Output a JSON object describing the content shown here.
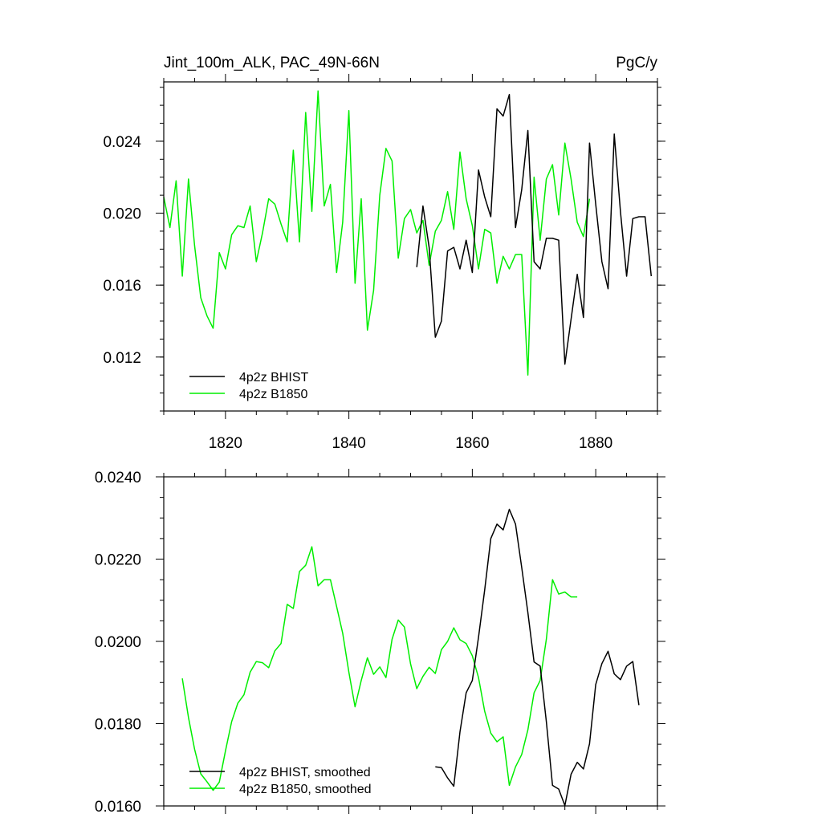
{
  "colors": {
    "bhist": "#000000",
    "b1850": "#00ee00"
  },
  "chart_data": [
    {
      "type": "line",
      "title": "Jint_100m_ALK, PAC_49N-66N",
      "units": "PgC/y",
      "xlim": [
        1810,
        1890
      ],
      "ylim": [
        0.009,
        0.0273
      ],
      "xticks": [
        1820,
        1840,
        1860,
        1880
      ],
      "xtick_labels": [
        "1820",
        "1840",
        "1860",
        "1880"
      ],
      "yticks": [
        0.012,
        0.016,
        0.02,
        0.024
      ],
      "ytick_labels": [
        "0.012",
        "0.016",
        "0.020",
        "0.024"
      ],
      "legend": "bottom-left",
      "series": [
        {
          "name": "4p2z BHIST",
          "color": "#000000",
          "x": [
            1851,
            1852,
            1853,
            1854,
            1855,
            1856,
            1857,
            1858,
            1859,
            1860,
            1861,
            1862,
            1863,
            1864,
            1865,
            1866,
            1867,
            1868,
            1869,
            1870,
            1871,
            1872,
            1873,
            1874,
            1875,
            1876,
            1877,
            1878,
            1879,
            1880,
            1881,
            1882,
            1883,
            1884,
            1885,
            1886,
            1887,
            1888,
            1889
          ],
          "y": [
            0.017,
            0.0204,
            0.0181,
            0.0131,
            0.014,
            0.0179,
            0.0181,
            0.0169,
            0.0185,
            0.0167,
            0.0224,
            0.0209,
            0.0198,
            0.0258,
            0.0254,
            0.0266,
            0.0192,
            0.0213,
            0.0246,
            0.0173,
            0.0169,
            0.0186,
            0.0186,
            0.0185,
            0.0116,
            0.0141,
            0.0166,
            0.0142,
            0.0239,
            0.0205,
            0.0173,
            0.0158,
            0.0244,
            0.0201,
            0.0165,
            0.0197,
            0.0198,
            0.0198,
            0.0165
          ]
        },
        {
          "name": "4p2z B1850",
          "color": "#00ee00",
          "x": [
            1810,
            1811,
            1812,
            1813,
            1814,
            1815,
            1816,
            1817,
            1818,
            1819,
            1820,
            1821,
            1822,
            1823,
            1824,
            1825,
            1826,
            1827,
            1828,
            1829,
            1830,
            1831,
            1832,
            1833,
            1834,
            1835,
            1836,
            1837,
            1838,
            1839,
            1840,
            1841,
            1842,
            1843,
            1844,
            1845,
            1846,
            1847,
            1848,
            1849,
            1850,
            1851,
            1852,
            1853,
            1854,
            1855,
            1856,
            1857,
            1858,
            1859,
            1860,
            1861,
            1862,
            1863,
            1864,
            1865,
            1866,
            1867,
            1868,
            1869,
            1870,
            1871,
            1872,
            1873,
            1874,
            1875,
            1876,
            1877,
            1878,
            1879
          ],
          "y": [
            0.0209,
            0.0192,
            0.0218,
            0.0165,
            0.0219,
            0.0182,
            0.0153,
            0.0143,
            0.0136,
            0.0178,
            0.0169,
            0.0188,
            0.0193,
            0.0192,
            0.0204,
            0.0173,
            0.0189,
            0.0208,
            0.0205,
            0.0194,
            0.0184,
            0.0235,
            0.0184,
            0.0256,
            0.0201,
            0.0268,
            0.0204,
            0.0216,
            0.0167,
            0.0195,
            0.0257,
            0.0161,
            0.0208,
            0.0135,
            0.0157,
            0.021,
            0.0236,
            0.0229,
            0.0175,
            0.0197,
            0.0202,
            0.0189,
            0.0196,
            0.0171,
            0.019,
            0.0196,
            0.0212,
            0.0191,
            0.0234,
            0.0208,
            0.0193,
            0.0169,
            0.0191,
            0.0189,
            0.0161,
            0.0176,
            0.0169,
            0.0177,
            0.0177,
            0.011,
            0.022,
            0.0185,
            0.0219,
            0.0227,
            0.0199,
            0.0239,
            0.0219,
            0.0195,
            0.0187,
            0.0208
          ]
        }
      ]
    },
    {
      "type": "line",
      "xlim": [
        1810,
        1890
      ],
      "ylim": [
        0.016,
        0.024
      ],
      "xticks": [
        1820,
        1840,
        1860,
        1880
      ],
      "yticks": [
        0.016,
        0.018,
        0.02,
        0.022,
        0.024
      ],
      "ytick_labels": [
        "0.0160",
        "0.0180",
        "0.0200",
        "0.0220",
        "0.0240"
      ],
      "legend": "bottom-left",
      "series": [
        {
          "name": "4p2z BHIST, smoothed",
          "color": "#000000",
          "x": [
            1854,
            1855,
            1856,
            1857,
            1858,
            1859,
            1860,
            1861,
            1862,
            1863,
            1864,
            1865,
            1866,
            1867,
            1868,
            1869,
            1870,
            1871,
            1872,
            1873,
            1874,
            1875,
            1876,
            1877,
            1878,
            1879,
            1880,
            1881,
            1882,
            1883,
            1884,
            1885,
            1886,
            1887
          ],
          "y": [
            0.01695,
            0.01693,
            0.01668,
            0.01648,
            0.0178,
            0.01875,
            0.01905,
            0.0201,
            0.02125,
            0.0225,
            0.02285,
            0.02271,
            0.02321,
            0.02285,
            0.0218,
            0.0207,
            0.0195,
            0.0194,
            0.01805,
            0.0165,
            0.01641,
            0.01601,
            0.01677,
            0.01706,
            0.0169,
            0.01751,
            0.01895,
            0.01946,
            0.01976,
            0.01921,
            0.01907,
            0.0194,
            0.01951,
            0.01845
          ]
        },
        {
          "name": "4p2z B1850, smoothed",
          "color": "#00ee00",
          "x": [
            1813,
            1814,
            1815,
            1816,
            1817,
            1818,
            1819,
            1820,
            1821,
            1822,
            1823,
            1824,
            1825,
            1826,
            1827,
            1828,
            1829,
            1830,
            1831,
            1832,
            1833,
            1834,
            1835,
            1836,
            1837,
            1838,
            1839,
            1840,
            1841,
            1842,
            1843,
            1844,
            1845,
            1846,
            1847,
            1848,
            1849,
            1850,
            1851,
            1852,
            1853,
            1854,
            1855,
            1856,
            1857,
            1858,
            1859,
            1860,
            1861,
            1862,
            1863,
            1864,
            1865,
            1866,
            1867,
            1868,
            1869,
            1870,
            1871,
            1872,
            1873,
            1874,
            1875,
            1876,
            1877
          ],
          "y": [
            0.0191,
            0.01815,
            0.01738,
            0.01678,
            0.01659,
            0.01638,
            0.01658,
            0.01734,
            0.01805,
            0.0185,
            0.0187,
            0.01925,
            0.01951,
            0.01948,
            0.01936,
            0.01977,
            0.01995,
            0.0209,
            0.0208,
            0.0217,
            0.02185,
            0.0223,
            0.02135,
            0.0215,
            0.0215,
            0.02085,
            0.0202,
            0.01925,
            0.01841,
            0.01905,
            0.0196,
            0.0192,
            0.01938,
            0.01912,
            0.02005,
            0.02052,
            0.02035,
            0.01945,
            0.01885,
            0.01915,
            0.01937,
            0.01922,
            0.0198,
            0.02,
            0.02033,
            0.02004,
            0.01995,
            0.01965,
            0.01912,
            0.0183,
            0.01777,
            0.01756,
            0.01768,
            0.0165,
            0.01695,
            0.01725,
            0.01785,
            0.01875,
            0.01905,
            0.02005,
            0.0215,
            0.02115,
            0.0212,
            0.02108,
            0.02108
          ]
        }
      ]
    }
  ]
}
